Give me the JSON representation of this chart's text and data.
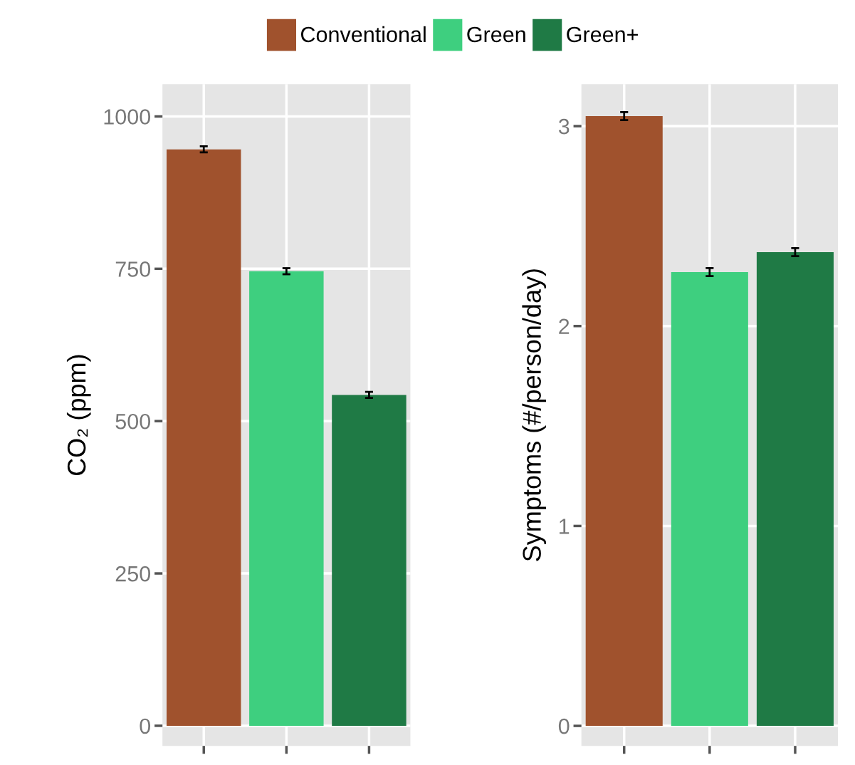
{
  "chart_data": [
    {
      "type": "bar",
      "ylabel": "CO₂ (ppm)",
      "categories": [
        null,
        null,
        null
      ],
      "ylim": [
        -33,
        1053
      ],
      "yticks": [
        0,
        250,
        500,
        750,
        1000
      ],
      "grid": true,
      "legend": "top",
      "tick_labels": "y",
      "series": [
        {
          "name": "Conventional",
          "color": "#a0522d",
          "values": [
            946,
            null,
            null
          ],
          "errors": [
            5,
            null,
            null
          ]
        },
        {
          "name": "Green",
          "color": "#3ecf7f",
          "values": [
            null,
            746,
            null
          ],
          "errors": [
            null,
            5,
            null
          ]
        },
        {
          "name": "Green+",
          "color": "#1f7a45",
          "values": [
            null,
            null,
            543
          ],
          "errors": [
            null,
            null,
            5
          ]
        }
      ]
    },
    {
      "type": "bar",
      "ylabel": "Symptoms (#/person/day)",
      "categories": [
        null,
        null,
        null
      ],
      "ylim": [
        -0.1,
        3.21
      ],
      "yticks": [
        0,
        1,
        2,
        3
      ],
      "grid": true,
      "tick_labels": "y",
      "series": [
        {
          "name": "Conventional",
          "color": "#a0522d",
          "values": [
            3.05,
            null,
            null
          ],
          "errors": [
            0.02,
            null,
            null
          ]
        },
        {
          "name": "Green",
          "color": "#3ecf7f",
          "values": [
            null,
            2.27,
            null
          ],
          "errors": [
            null,
            0.02,
            null
          ]
        },
        {
          "name": "Green+",
          "color": "#1f7a45",
          "values": [
            null,
            null,
            2.37
          ],
          "errors": [
            null,
            null,
            0.02
          ]
        }
      ]
    }
  ]
}
